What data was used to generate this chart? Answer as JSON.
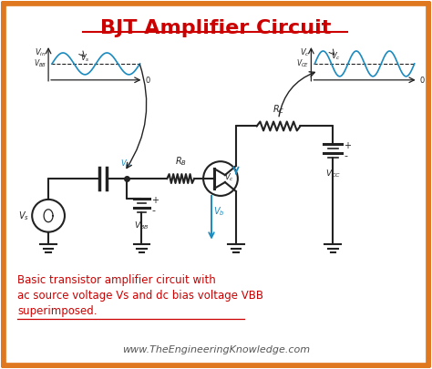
{
  "title": "BJT Amplifier Circuit",
  "title_color": "#cc0000",
  "bg_color": "#ffffff",
  "border_color": "#e07820",
  "circuit_color": "#222222",
  "blue_color": "#1a8abf",
  "caption_line1": "Basic transistor amplifier circuit with",
  "caption_line2": "ac source voltage Vs and dc bias voltage VBB",
  "caption_line3": "superimposed.",
  "website": "www.TheEngineeringKnowledge.com",
  "caption_color": "#cc0000",
  "website_color": "#555555",
  "lw": 1.5
}
